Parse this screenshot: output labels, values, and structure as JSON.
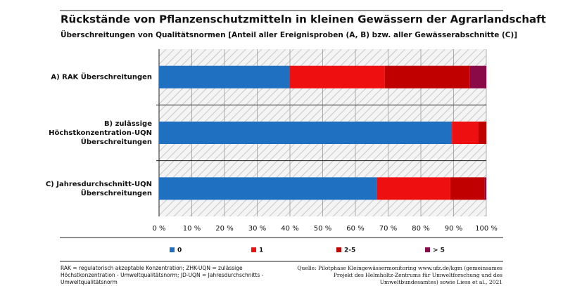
{
  "chart_data": {
    "type": "stacked_barh",
    "title": "Rückstände von Pflanzenschutzmitteln in kleinen Gewässern der Agrarlandschaft",
    "subtitle": "Überschreitungen von Qualitätsnormen [Anteil aller Ereignisproben (A, B) bzw. aller Gewässerabschnitte (C)]",
    "categories": [
      "A) RAK Überschreitungen",
      "B) zulässige Höchstkonzentration-UQN Überschreitungen",
      "C) Jahresdurchschnitt-UQN Überschreitungen"
    ],
    "series": [
      {
        "name": "0",
        "color": "#1f70c1",
        "values": [
          40,
          89.5,
          66.5
        ]
      },
      {
        "name": "1",
        "color": "#ee1010",
        "values": [
          29,
          8,
          22.5
        ]
      },
      {
        "name": "2-5",
        "color": "#c00000",
        "values": [
          26,
          2.5,
          10.5
        ]
      },
      {
        "name": "> 5",
        "color": "#8a0a48",
        "values": [
          5,
          0,
          0.5
        ]
      }
    ],
    "xlim": [
      0,
      100
    ],
    "xticks": [
      {
        "value": 0,
        "label": "0 %"
      },
      {
        "value": 10,
        "label": "10 %"
      },
      {
        "value": 20,
        "label": "20 %"
      },
      {
        "value": 30,
        "label": "30 %"
      },
      {
        "value": 40,
        "label": "40 %"
      },
      {
        "value": 50,
        "label": "50 %"
      },
      {
        "value": 60,
        "label": "60 %"
      },
      {
        "value": 70,
        "label": "70 %"
      },
      {
        "value": 80,
        "label": "80 %"
      },
      {
        "value": 90,
        "label": "90 %"
      },
      {
        "value": 100,
        "label": "100 %"
      }
    ],
    "grid": true,
    "footnote_left": "RAK = regulatorisch akzeptable Konzentration; ZHK-UQN = zulässige Höchstkonzentration - Umweltqualitätsnorm; JD-UQN = Jahresdurchschnitts -Umweltqualitätsnorm",
    "footnote_right": "Quelle: Pilotphase Kleingewässermonitoring www.ufz.de/kgm (gemeinsames Projekt des Helmholtz-Zentrums für Umweltforschung und des Umweltbundesamtes) sowie Liess et al., 2021"
  }
}
